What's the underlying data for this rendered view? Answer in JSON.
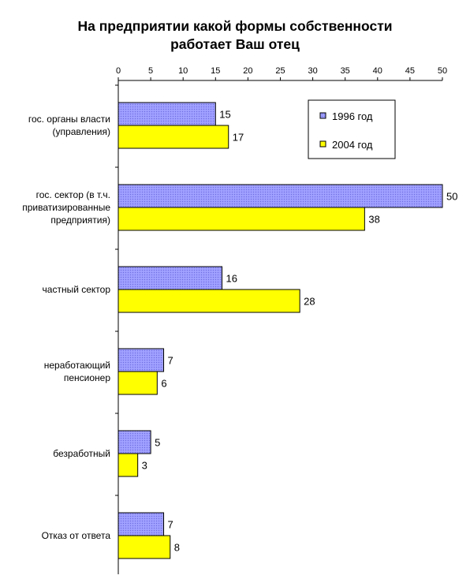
{
  "title_lines": [
    "На предприятии какой формы собственности",
    "работает Ваш отец"
  ],
  "chart_data": {
    "type": "bar",
    "orientation": "horizontal",
    "title": "На предприятии какой формы собственности работает Ваш отец",
    "categories": [
      [
        "гос. органы власти",
        "(управления)"
      ],
      [
        "гос. сектор (в т.ч.",
        "приватизированные",
        "предприятия)"
      ],
      [
        "частный сектор"
      ],
      [
        "неработающий",
        "пенсионер"
      ],
      [
        "безработный"
      ],
      [
        "Отказ от ответа"
      ]
    ],
    "series": [
      {
        "name": "1996 год",
        "color": "#9999ff",
        "values": [
          15,
          50,
          16,
          7,
          5,
          7
        ]
      },
      {
        "name": "2004 год",
        "color": "#ffff00",
        "values": [
          17,
          38,
          28,
          6,
          3,
          8
        ]
      }
    ],
    "xlim": [
      0,
      50
    ],
    "xticks": [
      0,
      5,
      10,
      15,
      20,
      25,
      30,
      35,
      40,
      45,
      50
    ],
    "axis_position": "top",
    "legend_position": "top-right",
    "grid": false
  }
}
